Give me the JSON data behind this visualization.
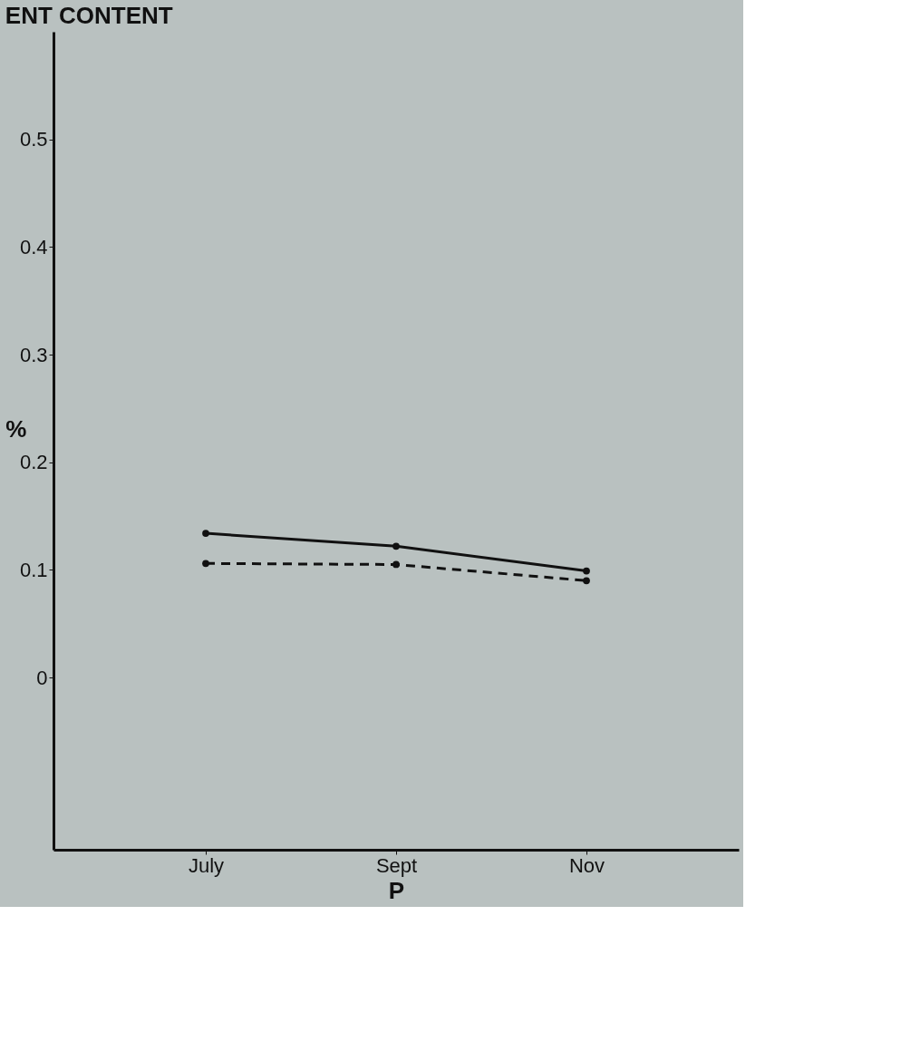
{
  "chart_data": {
    "type": "line",
    "title": "ENT CONTENT",
    "xlabel": "P",
    "ylabel": "%",
    "categories": [
      "July",
      "Sept",
      "Nov"
    ],
    "series": [
      {
        "color": "#111111",
        "values": [
          0.134,
          0.122,
          0.099
        ],
        "line_style": "solid"
      },
      {
        "color": "#111111",
        "values": [
          0.106,
          0.105,
          0.09
        ],
        "line_style": "dashed"
      }
    ],
    "ylim": [
      -0.16,
      0.6
    ],
    "yticks": [
      0,
      0.1,
      0.2,
      0.3,
      0.4,
      0.5
    ],
    "grid": false,
    "marker": "circle"
  }
}
